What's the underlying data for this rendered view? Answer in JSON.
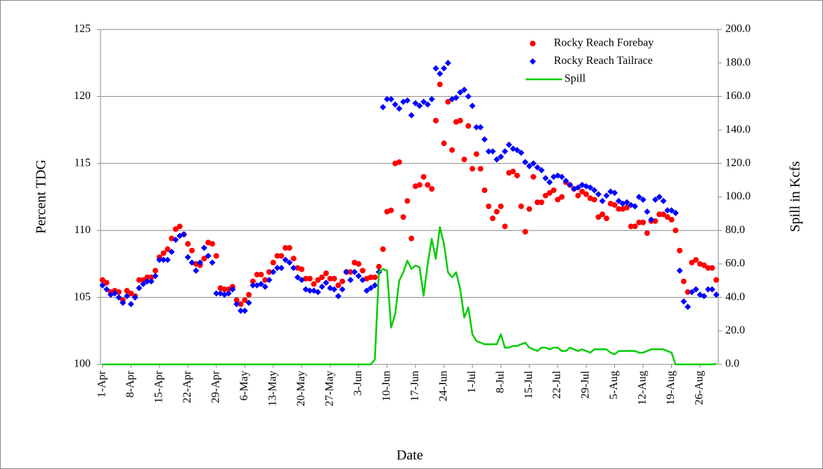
{
  "chart_data": {
    "type": "combo",
    "x_label": "Date",
    "y_label": "Percent TDG",
    "y2_label": "Spill in Kcfs",
    "categories": [
      "1-Apr",
      null,
      null,
      null,
      null,
      null,
      null,
      "8-Apr",
      null,
      null,
      null,
      null,
      null,
      null,
      "15-Apr",
      null,
      null,
      null,
      null,
      null,
      null,
      "22-Apr",
      null,
      null,
      null,
      null,
      null,
      null,
      "29-Apr",
      null,
      null,
      null,
      null,
      null,
      null,
      "6-May",
      null,
      null,
      null,
      null,
      null,
      null,
      "13-May",
      null,
      null,
      null,
      null,
      null,
      null,
      "20-May",
      null,
      null,
      null,
      null,
      null,
      null,
      "27-May",
      null,
      null,
      null,
      null,
      null,
      null,
      "3-Jun",
      null,
      null,
      null,
      null,
      null,
      null,
      "10-Jun",
      null,
      null,
      null,
      null,
      null,
      null,
      "17-Jun",
      null,
      null,
      null,
      null,
      null,
      null,
      "24-Jun",
      null,
      null,
      null,
      null,
      null,
      null,
      "1-Jul",
      null,
      null,
      null,
      null,
      null,
      null,
      "8-Jul",
      null,
      null,
      null,
      null,
      null,
      null,
      "15-Jul",
      null,
      null,
      null,
      null,
      null,
      null,
      "22-Jul",
      null,
      null,
      null,
      null,
      null,
      null,
      "29-Jul",
      null,
      null,
      null,
      null,
      null,
      null,
      "5-Aug",
      null,
      null,
      null,
      null,
      null,
      null,
      "12-Aug",
      null,
      null,
      null,
      null,
      null,
      null,
      "19-Aug",
      null,
      null,
      null,
      null,
      null,
      null,
      "26-Aug",
      null,
      null,
      null,
      null
    ],
    "ylim": [
      100,
      125
    ],
    "yticks": [
      100,
      105,
      110,
      115,
      120,
      125
    ],
    "y2lim": [
      0,
      200
    ],
    "y2ticks": [
      {
        "value": 0,
        "label": "0.0"
      },
      {
        "value": 20,
        "label": "20.0"
      },
      {
        "value": 40,
        "label": "40.0"
      },
      {
        "value": 60,
        "label": "60.0"
      },
      {
        "value": 80,
        "label": "80.0"
      },
      {
        "value": 100,
        "label": "100.0"
      },
      {
        "value": 120,
        "label": "120.0"
      },
      {
        "value": 140,
        "label": "140.0"
      },
      {
        "value": 160,
        "label": "160.0"
      },
      {
        "value": 180,
        "label": "180.0"
      },
      {
        "value": 200,
        "label": "200.0"
      }
    ],
    "grid": true,
    "legend": "top-right",
    "series": [
      {
        "name": "Rocky Reach Forebay",
        "type": "scatter",
        "marker": "circle",
        "color": "#ff0000",
        "values": [
          106.3,
          106.1,
          105.4,
          105.5,
          105.4,
          104.8,
          105.5,
          105.3,
          105.1,
          106.3,
          106.3,
          106.5,
          106.5,
          107.0,
          108.0,
          108.3,
          108.6,
          109.4,
          110.1,
          110.3,
          109.7,
          109.0,
          108.5,
          107.5,
          107.4,
          107.9,
          109.1,
          109.0,
          108.1,
          105.7,
          105.6,
          105.6,
          105.8,
          104.8,
          104.5,
          104.8,
          105.2,
          106.2,
          106.7,
          106.7,
          106.3,
          106.9,
          107.6,
          108.1,
          108.1,
          108.7,
          108.7,
          107.9,
          107.2,
          107.1,
          106.4,
          106.4,
          106.0,
          106.3,
          106.5,
          106.8,
          106.4,
          106.4,
          105.9,
          106.2,
          106.9,
          106.9,
          107.6,
          107.5,
          107.0,
          106.4,
          106.5,
          106.5,
          107.3,
          108.6,
          111.4,
          111.5,
          115.0,
          115.1,
          111.0,
          112.2,
          109.4,
          113.3,
          113.4,
          114.0,
          113.4,
          113.1,
          118.2,
          120.9,
          116.5,
          119.6,
          116.0,
          118.1,
          118.2,
          115.3,
          117.8,
          114.6,
          115.7,
          114.6,
          113.0,
          111.8,
          110.9,
          111.4,
          111.8,
          110.3,
          114.3,
          114.4,
          114.1,
          111.8,
          109.9,
          111.6,
          114.0,
          112.1,
          112.1,
          112.6,
          112.8,
          113.0,
          112.3,
          112.5,
          113.6,
          113.4,
          113.1,
          112.6,
          112.9,
          112.7,
          112.4,
          112.3,
          111.0,
          111.2,
          110.9,
          112.0,
          111.9,
          111.6,
          111.6,
          111.7,
          110.3,
          110.3,
          110.6,
          110.6,
          109.8,
          110.7,
          110.7,
          111.2,
          111.2,
          111.0,
          110.8,
          110.0,
          108.5,
          106.2,
          105.4,
          107.6,
          107.8,
          107.5,
          107.4,
          107.2,
          107.2,
          106.3
        ]
      },
      {
        "name": "Rocky Reach Tailrace",
        "type": "scatter",
        "marker": "diamond",
        "color": "#0000ff",
        "values": [
          105.9,
          105.6,
          105.2,
          105.3,
          105.0,
          104.6,
          105.1,
          104.5,
          105.0,
          105.7,
          106.0,
          106.2,
          106.2,
          106.6,
          107.8,
          107.8,
          107.8,
          108.4,
          109.3,
          109.6,
          109.7,
          108.0,
          107.6,
          107.0,
          107.6,
          108.7,
          108.1,
          107.6,
          105.3,
          105.3,
          105.2,
          105.3,
          105.6,
          104.5,
          104.0,
          104.0,
          104.6,
          105.9,
          105.9,
          106.0,
          105.8,
          106.3,
          106.9,
          107.2,
          107.2,
          107.8,
          107.6,
          107.2,
          106.5,
          106.3,
          105.6,
          105.5,
          105.5,
          105.4,
          105.8,
          106.1,
          105.7,
          105.6,
          105.1,
          105.6,
          106.9,
          106.3,
          106.9,
          106.6,
          106.3,
          105.5,
          105.7,
          105.9,
          106.9,
          119.2,
          119.8,
          119.8,
          119.4,
          119.1,
          119.6,
          119.7,
          118.6,
          119.5,
          119.3,
          119.6,
          119.4,
          119.8,
          122.1,
          121.7,
          122.1,
          122.5,
          119.8,
          119.9,
          120.3,
          120.5,
          120.0,
          119.3,
          117.7,
          117.7,
          116.8,
          115.9,
          115.9,
          115.3,
          115.5,
          115.9,
          116.4,
          116.1,
          116.0,
          115.8,
          115.1,
          114.8,
          115.0,
          114.7,
          114.5,
          113.9,
          113.6,
          114.0,
          114.1,
          114.0,
          113.7,
          113.4,
          113.1,
          113.2,
          113.4,
          113.3,
          113.2,
          113.0,
          112.7,
          112.2,
          112.6,
          112.9,
          112.8,
          112.2,
          112.0,
          112.1,
          111.9,
          111.8,
          112.5,
          112.3,
          111.4,
          110.8,
          112.3,
          112.5,
          112.2,
          111.5,
          111.5,
          111.3,
          107.0,
          104.7,
          104.3,
          105.4,
          105.6,
          105.2,
          105.1,
          105.6,
          105.6,
          105.2
        ]
      },
      {
        "name": "Spill",
        "type": "line",
        "axis": "y2",
        "color": "#00cc00",
        "values": [
          0,
          0,
          0,
          0,
          0,
          0,
          0,
          0,
          0,
          0,
          0,
          0,
          0,
          0,
          0,
          0,
          0,
          0,
          0,
          0,
          0,
          0,
          0,
          0,
          0,
          0,
          0,
          0,
          0,
          0,
          0,
          0,
          0,
          0,
          0,
          0,
          0,
          0,
          0,
          0,
          0,
          0,
          0,
          0,
          0,
          0,
          0,
          0,
          0,
          0,
          0,
          0,
          0,
          0,
          0,
          0,
          0,
          0,
          0,
          0,
          0,
          0,
          0,
          0,
          0,
          0,
          0,
          3,
          55,
          57,
          56,
          22,
          30,
          50,
          55,
          62,
          57,
          59,
          58,
          41,
          60,
          75,
          63,
          82,
          72,
          55,
          52,
          55,
          45,
          28,
          34,
          18,
          14,
          13,
          12,
          12,
          12,
          12,
          18,
          10,
          10,
          11,
          11,
          12,
          13,
          10,
          9,
          8,
          10,
          10,
          9,
          10,
          10,
          8,
          8,
          10,
          9,
          8,
          9,
          8,
          7,
          9,
          9,
          9,
          9,
          7,
          6,
          8,
          8,
          8,
          8,
          8,
          7,
          7,
          8,
          9,
          9,
          9,
          9,
          8,
          7,
          0,
          0,
          0,
          0,
          0,
          0,
          0,
          0,
          0,
          0,
          0.3
        ]
      }
    ]
  }
}
